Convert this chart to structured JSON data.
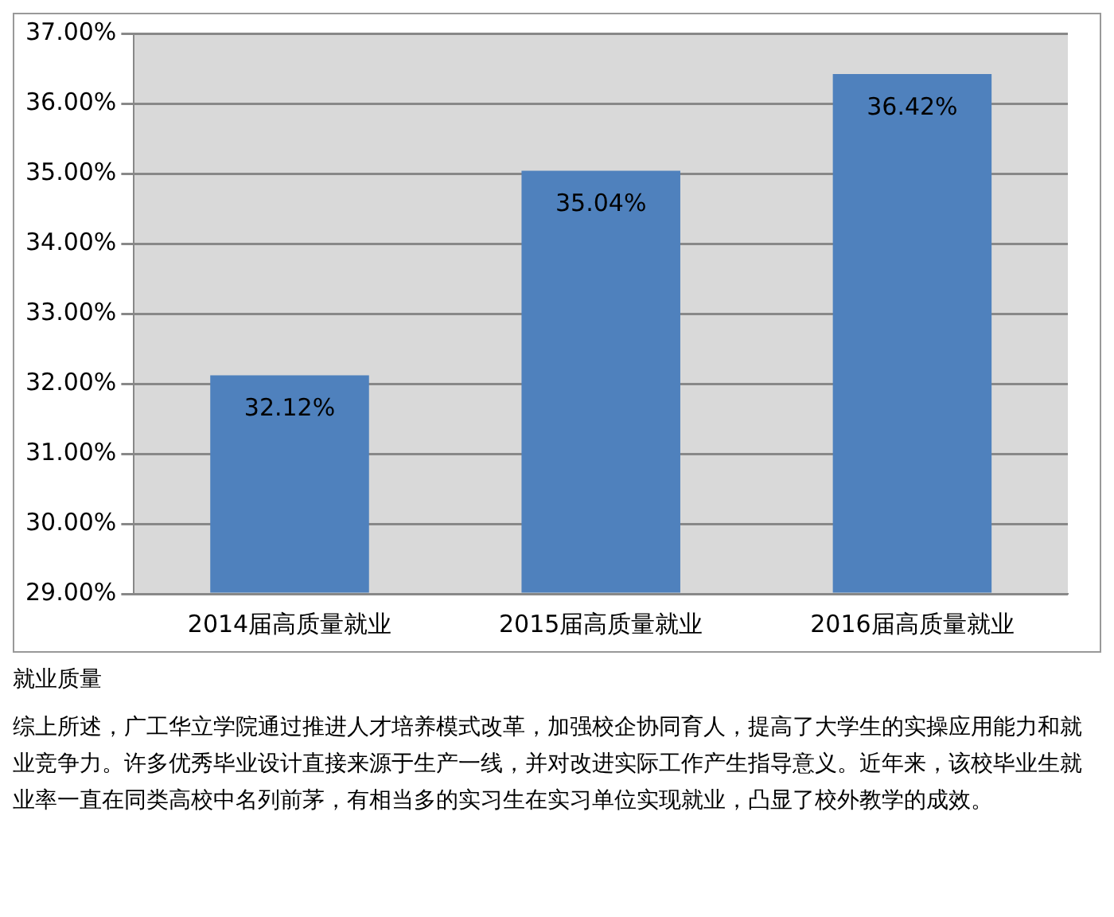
{
  "chart_data": {
    "type": "bar",
    "categories": [
      "2014届高质量就业",
      "2015届高质量就业",
      "2016届高质量就业"
    ],
    "series": [
      {
        "color": "#4f81bd",
        "values": [
          32.12,
          35.04,
          36.42
        ],
        "value_labels": [
          "32.12%",
          "35.04%",
          "36.42%"
        ]
      }
    ],
    "ylim": [
      29,
      37
    ],
    "yticks": [
      {
        "value": 29,
        "label": "29.00%"
      },
      {
        "value": 30,
        "label": "30.00%"
      },
      {
        "value": 31,
        "label": "31.00%"
      },
      {
        "value": 32,
        "label": "32.00%"
      },
      {
        "value": 33,
        "label": "33.00%"
      },
      {
        "value": 34,
        "label": "34.00%"
      },
      {
        "value": 35,
        "label": "35.00%"
      },
      {
        "value": 36,
        "label": "36.00%"
      },
      {
        "value": 37,
        "label": "37.00%"
      }
    ],
    "grid": "y",
    "legend": false,
    "annotations": [
      "就业质量",
      "综上所述，广工华立学院通过推进人才培养模式改革，加强校企协同育人，提高了大学生的实操应用能力和就业竞争力。许多优秀毕业设计直接来源于生产一线，并对改进实际工作产生指导意义。近年来，该校毕业生就业率一直在同类高校中名列前茅，有相当多的实习生在实习单位实现就业，凸显了校外教学的成效。"
    ]
  }
}
